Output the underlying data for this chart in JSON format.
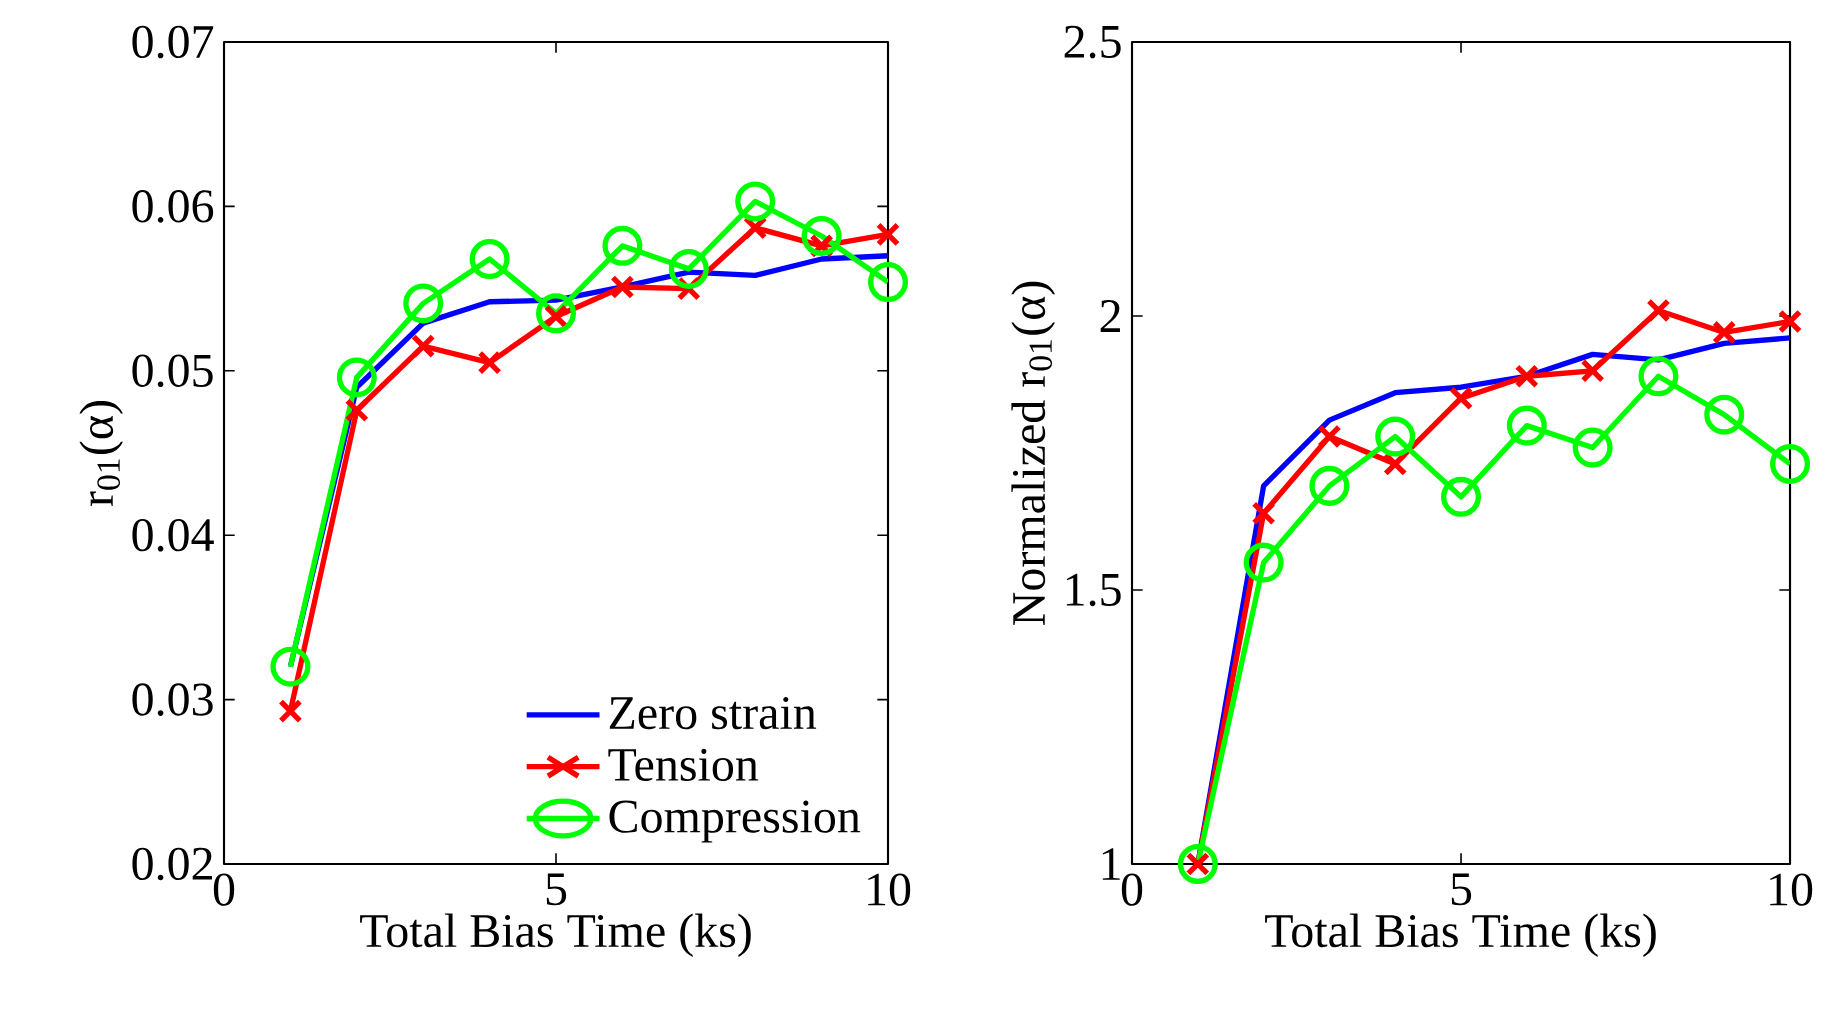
{
  "chart_data": [
    {
      "type": "line",
      "xlabel": "Total Bias Time (ks)",
      "ylabel": "r$_{01}$(α)",
      "x": [
        1,
        2,
        3,
        4,
        5,
        6,
        7,
        8,
        9,
        10
      ],
      "xlim": [
        0,
        10
      ],
      "ylim": [
        0.02,
        0.07
      ],
      "xticks": [
        0,
        5,
        10
      ],
      "yticks": [
        0.02,
        0.03,
        0.04,
        0.05,
        0.06,
        0.07
      ],
      "grid": false,
      "legend": "bottom right",
      "series": [
        {
          "name": "Zero strain",
          "color": "#0000ff",
          "marker": "none",
          "values": [
            0.032,
            0.049,
            0.0529,
            0.0542,
            0.0543,
            0.0551,
            0.056,
            0.0558,
            0.0568,
            0.057
          ]
        },
        {
          "name": "Tension",
          "color": "#ff0000",
          "marker": "cross",
          "values": [
            0.0293,
            0.0476,
            0.0515,
            0.0505,
            0.0533,
            0.0551,
            0.055,
            0.0587,
            0.0576,
            0.0583
          ]
        },
        {
          "name": "Compression",
          "color": "#00ff00",
          "marker": "circle",
          "values": [
            0.032,
            0.0496,
            0.0541,
            0.0568,
            0.0535,
            0.0576,
            0.0562,
            0.0603,
            0.0582,
            0.0554
          ]
        }
      ]
    },
    {
      "type": "line",
      "xlabel": "Total Bias Time (ks)",
      "ylabel": "Normalized r$_{01}$(α)",
      "x": [
        1,
        2,
        3,
        4,
        5,
        6,
        7,
        8,
        9,
        10
      ],
      "xlim": [
        0,
        10
      ],
      "ylim": [
        1,
        2.5
      ],
      "xticks": [
        0,
        5,
        10
      ],
      "yticks": [
        1,
        1.5,
        2,
        2.5
      ],
      "grid": false,
      "series": [
        {
          "color": "#0000ff",
          "marker": "none",
          "values": [
            1.0,
            1.69,
            1.81,
            1.86,
            1.87,
            1.89,
            1.93,
            1.92,
            1.95,
            1.96
          ]
        },
        {
          "color": "#ff0000",
          "marker": "cross",
          "values": [
            1.0,
            1.64,
            1.78,
            1.73,
            1.85,
            1.89,
            1.9,
            2.01,
            1.97,
            1.99
          ]
        },
        {
          "color": "#00ff00",
          "marker": "circle",
          "values": [
            1.0,
            1.55,
            1.69,
            1.78,
            1.67,
            1.8,
            1.76,
            1.89,
            1.82,
            1.73
          ]
        }
      ]
    }
  ]
}
